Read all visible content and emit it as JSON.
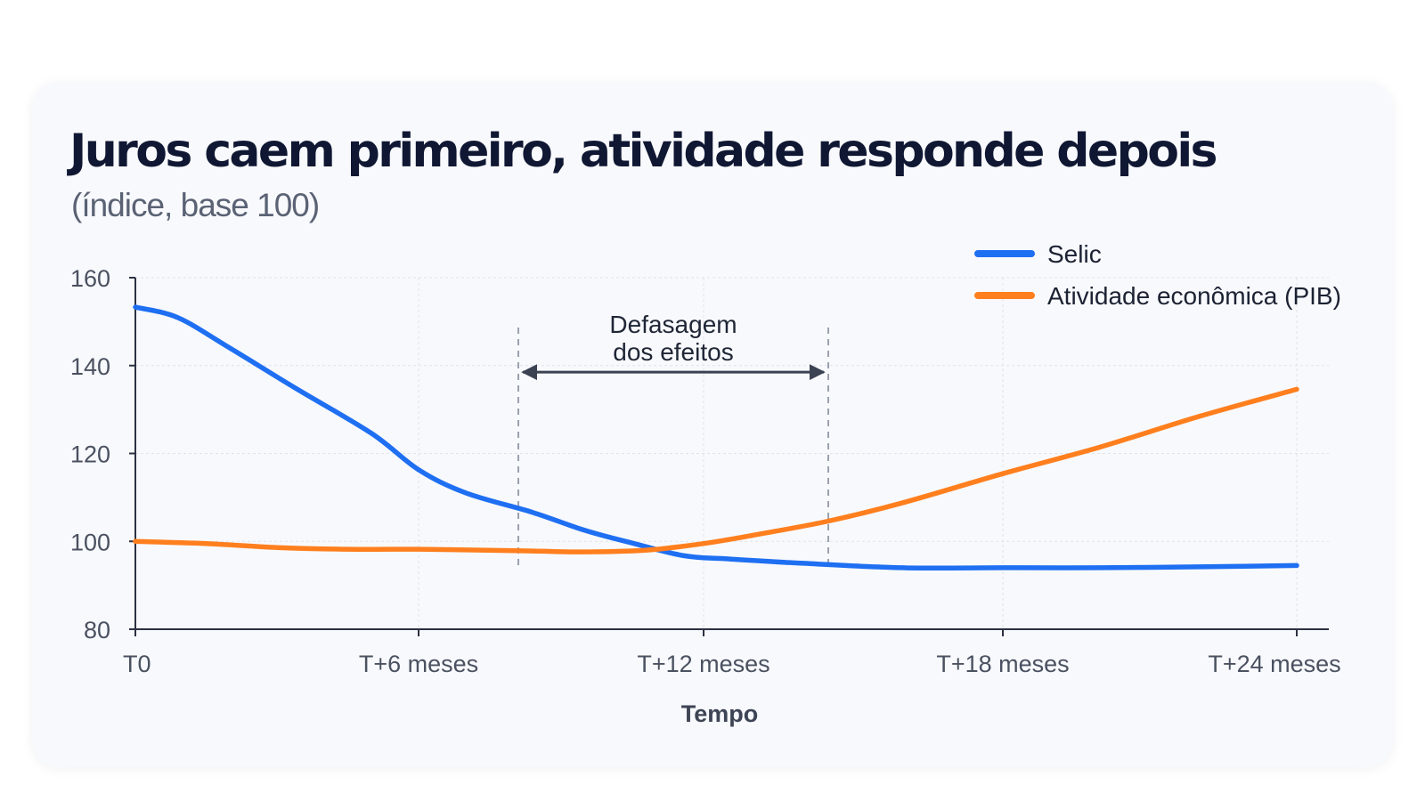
{
  "chart_data": {
    "type": "line",
    "title": "Juros caem primeiro, atividade responde depois",
    "subtitle": "(índice, base 100)",
    "xlabel": "Tempo",
    "ylabel": "",
    "x_range": [
      0,
      24
    ],
    "ylim": [
      80,
      160
    ],
    "y_ticks": [
      80,
      100,
      120,
      140,
      160
    ],
    "x_ticks": [
      {
        "value": 0,
        "label": "T0"
      },
      {
        "value": 6,
        "label": "T+6 meses"
      },
      {
        "value": 12,
        "label": "T+12 meses"
      },
      {
        "value": 18,
        "label": "T+18 meses"
      },
      {
        "value": 24,
        "label": "T+24 meses"
      }
    ],
    "grid": true,
    "legend_position": "top-right",
    "series": [
      {
        "name": "Selic",
        "color": "#1f6ff2",
        "x": [
          0,
          0.9,
          2,
          3.4,
          5,
          6,
          7,
          8.4,
          9.5,
          10.5,
          11.6,
          12.5,
          14,
          16,
          18,
          20,
          22,
          24
        ],
        "y": [
          153.3,
          150.9,
          144,
          134.8,
          124.6,
          116.3,
          111,
          106.6,
          102.5,
          99.6,
          96.7,
          96,
          95,
          94,
          94,
          94,
          94.2,
          94.5
        ]
      },
      {
        "name": "Atividade econômica (PIB)",
        "color": "#ff7f1e",
        "x": [
          0,
          1.5,
          3,
          4.5,
          6,
          7.3,
          8.4,
          9.5,
          10.8,
          12,
          13,
          14.5,
          16,
          18,
          20,
          22,
          24
        ],
        "y": [
          100,
          99.5,
          98.6,
          98.2,
          98.2,
          98,
          97.8,
          97.6,
          98,
          99.5,
          101.4,
          104.6,
          108.8,
          115.4,
          121.5,
          128.4,
          134.6
        ]
      }
    ],
    "annotations": [
      {
        "text_lines": [
          "Defasagem",
          "dos efeitos"
        ],
        "x_start": 8.1,
        "x_end": 14.5,
        "y_arrow": 138.5
      }
    ]
  }
}
